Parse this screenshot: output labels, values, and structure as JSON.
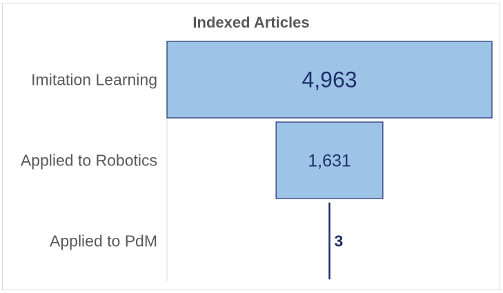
{
  "chart_data": {
    "type": "bar",
    "subtype": "funnel",
    "title": "Indexed Articles",
    "categories": [
      "Imitation Learning",
      "Applied to Robotics",
      "Applied to PdM"
    ],
    "values": [
      4963,
      1631,
      3
    ],
    "value_labels": [
      "4,963",
      "1,631",
      "3"
    ],
    "xlabel": "",
    "ylabel": "",
    "legend": "none",
    "grid": false,
    "colors": {
      "bar_fill": "#9dc3e6",
      "bar_stroke": "#1f2f6b",
      "value_text": "#1f2f6b",
      "category_text": "#595959",
      "title_text": "#595959"
    }
  }
}
